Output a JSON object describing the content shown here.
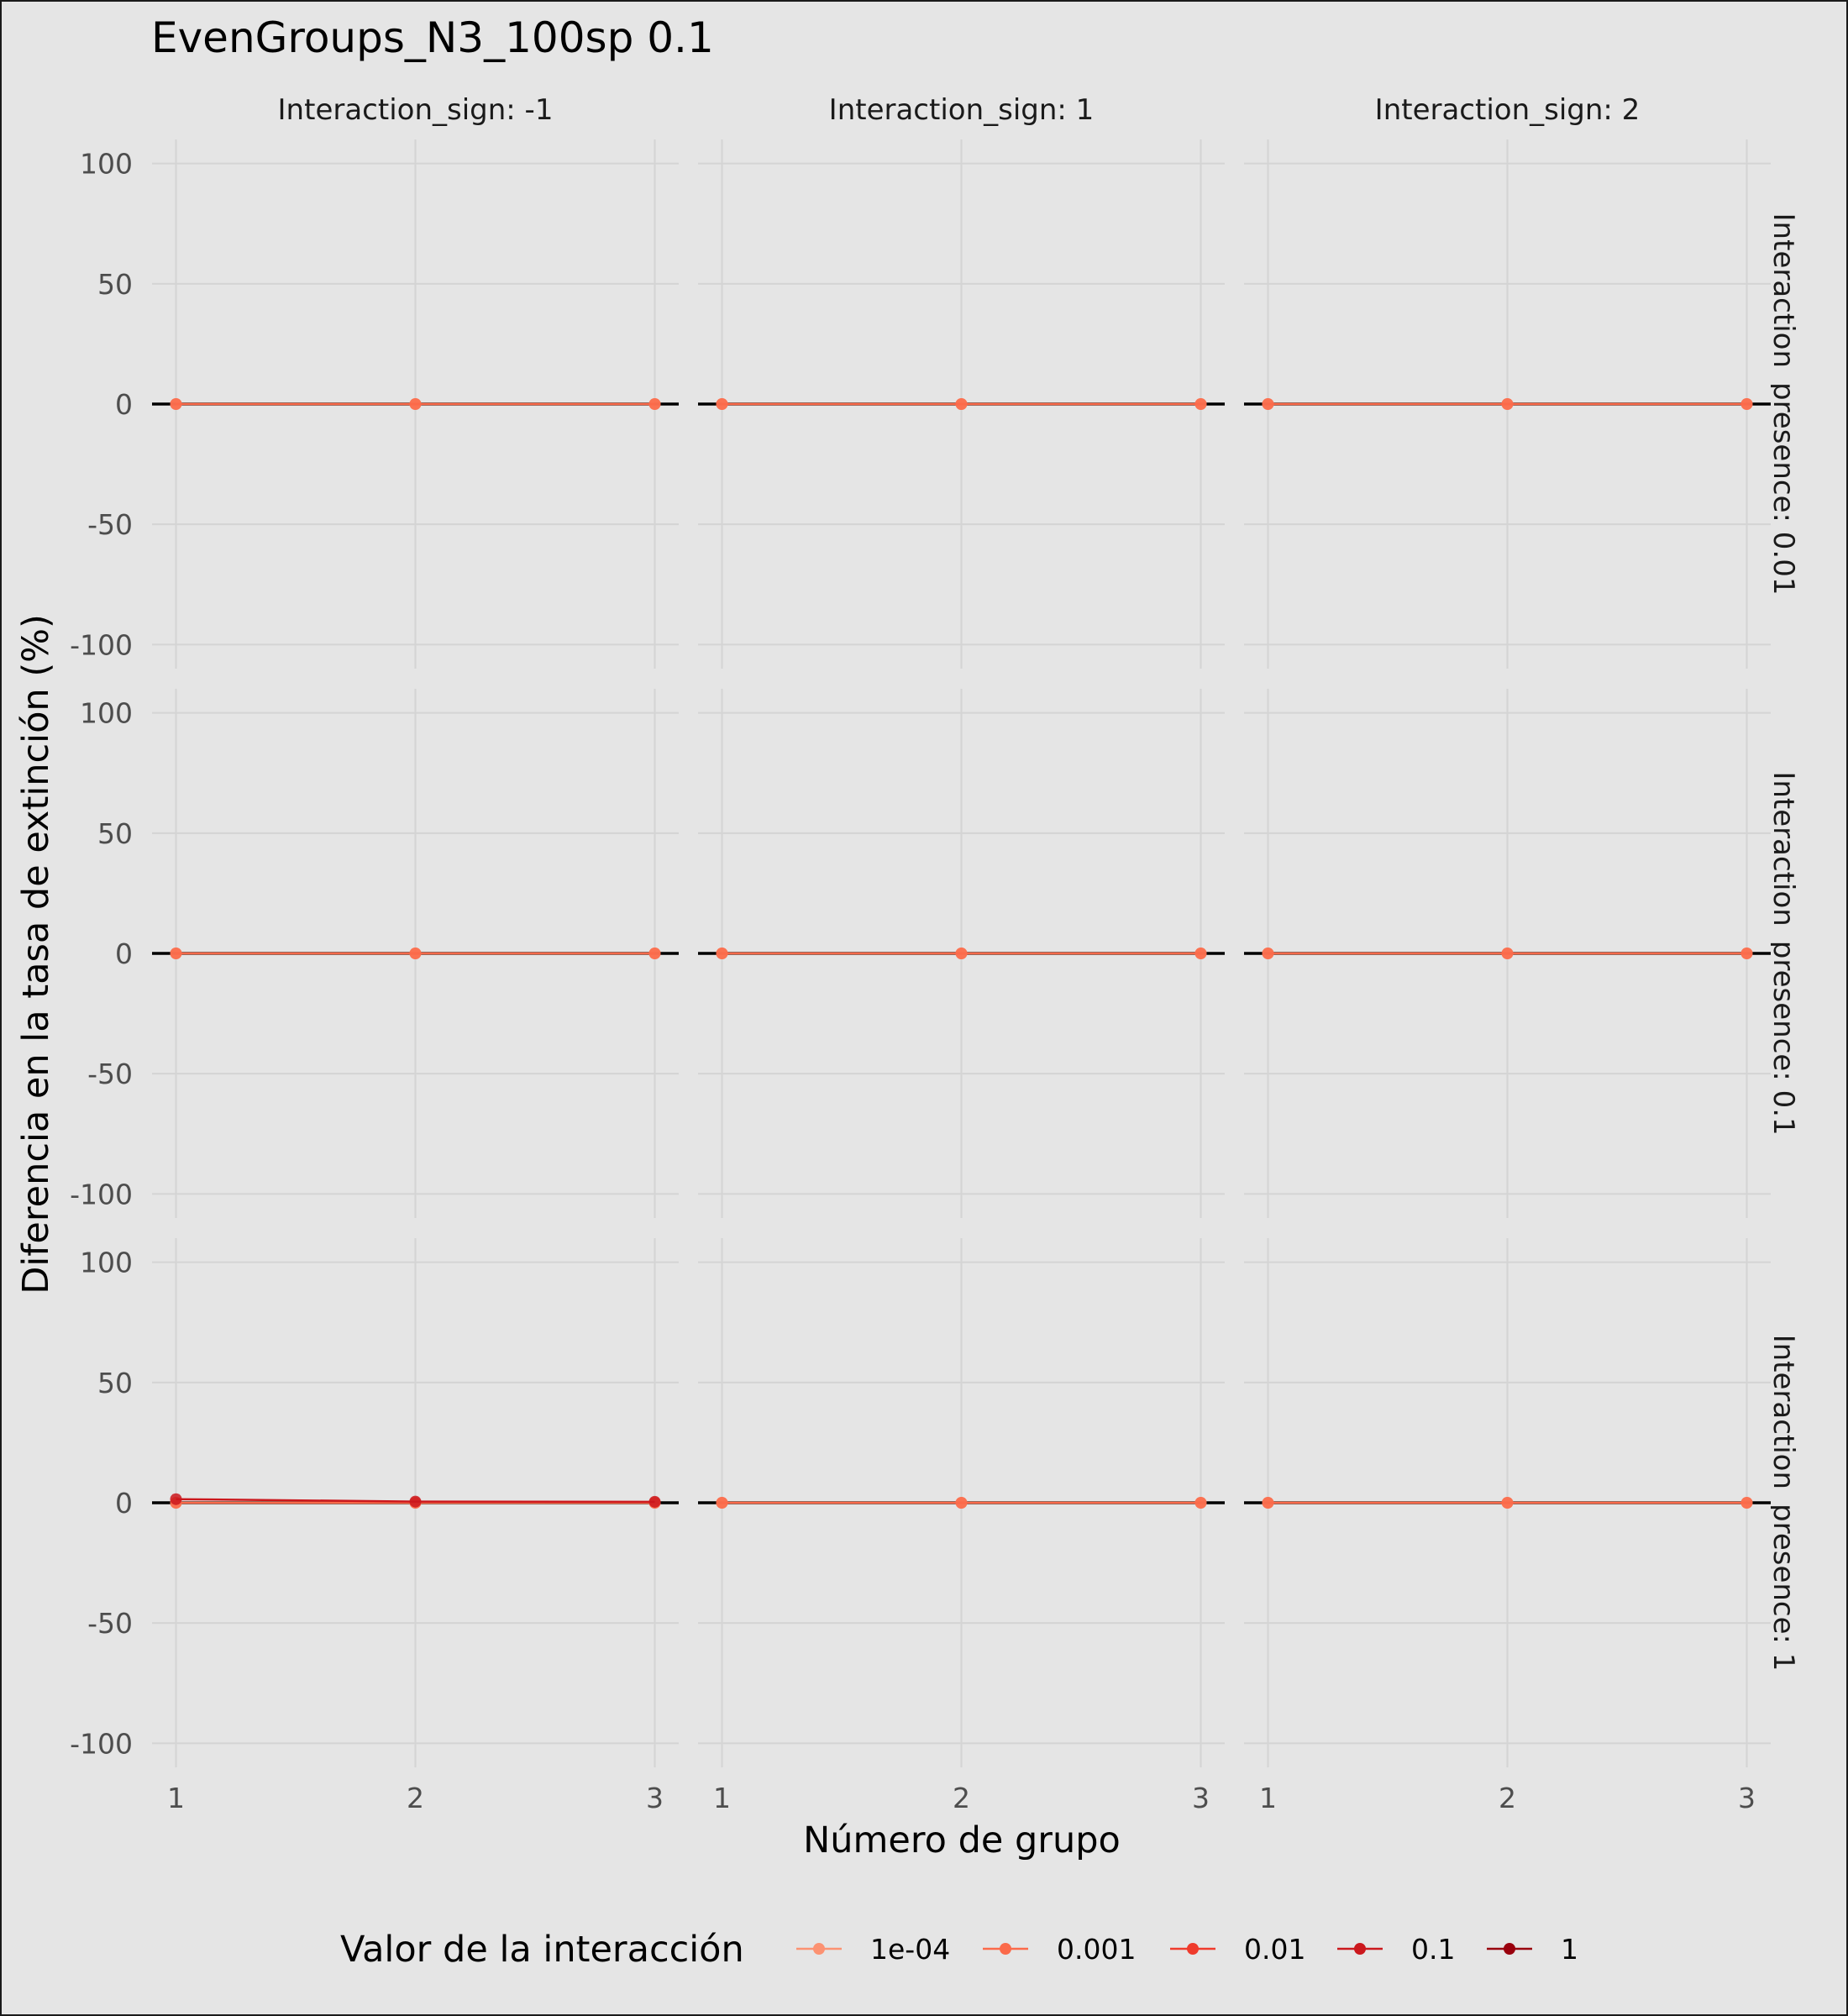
{
  "chart_data": {
    "type": "line",
    "title": "EvenGroups_N3_100sp 0.1",
    "xlabel": "Número de grupo",
    "ylabel": "Diferencia en la tasa de extinción (%)",
    "x": [
      1,
      2,
      3
    ],
    "x_tick_labels": [
      "1",
      "2",
      "3"
    ],
    "ylim": [
      -110,
      110
    ],
    "y_ticks": [
      100,
      50,
      0,
      -50,
      -100
    ],
    "y_tick_labels": [
      "100",
      "50",
      "0",
      "-50",
      "-100"
    ],
    "grid": true,
    "reference_line_y": 0,
    "column_facet_labels": [
      "Interaction_sign: -1",
      "Interaction_sign: 1",
      "Interaction_sign: 2"
    ],
    "row_facet_labels": [
      "Interaction_presence: 0.01",
      "Interaction_presence: 0.1",
      "Interaction_presence: 1"
    ],
    "legend": {
      "title": "Valor de la interacción",
      "position": "bottom",
      "entries": [
        {
          "label": "1e-04",
          "color": "#fc9272"
        },
        {
          "label": "0.001",
          "color": "#fb6a4a"
        },
        {
          "label": "0.01",
          "color": "#ef3b2c"
        },
        {
          "label": "0.1",
          "color": "#cb181d"
        },
        {
          "label": "1",
          "color": "#99000d"
        }
      ]
    },
    "panels": [
      {
        "row": 0,
        "col": 0,
        "series": [
          {
            "label": "1e-04",
            "values": [
              0,
              0,
              0
            ]
          },
          {
            "label": "0.001",
            "values": [
              0,
              0,
              0
            ]
          }
        ]
      },
      {
        "row": 0,
        "col": 1,
        "series": [
          {
            "label": "1e-04",
            "values": [
              0,
              0,
              0
            ]
          },
          {
            "label": "0.001",
            "values": [
              0,
              0,
              0
            ]
          }
        ]
      },
      {
        "row": 0,
        "col": 2,
        "series": [
          {
            "label": "1e-04",
            "values": [
              0,
              0,
              0
            ]
          },
          {
            "label": "0.001",
            "values": [
              0,
              0,
              0
            ]
          }
        ]
      },
      {
        "row": 1,
        "col": 0,
        "series": [
          {
            "label": "1e-04",
            "values": [
              0,
              0,
              0
            ]
          },
          {
            "label": "0.001",
            "values": [
              0,
              0,
              0
            ]
          }
        ]
      },
      {
        "row": 1,
        "col": 1,
        "series": [
          {
            "label": "1e-04",
            "values": [
              0,
              0,
              0
            ]
          },
          {
            "label": "0.001",
            "values": [
              0,
              0,
              0
            ]
          }
        ]
      },
      {
        "row": 1,
        "col": 2,
        "series": [
          {
            "label": "1e-04",
            "values": [
              0,
              0,
              0
            ]
          },
          {
            "label": "0.001",
            "values": [
              0,
              0,
              0
            ]
          }
        ]
      },
      {
        "row": 2,
        "col": 0,
        "series": [
          {
            "label": "1e-04",
            "values": [
              0,
              0,
              0
            ]
          },
          {
            "label": "0.001",
            "values": [
              0,
              0,
              0
            ]
          },
          {
            "label": "0.1",
            "values": [
              1.5,
              0.5,
              0.4
            ]
          }
        ]
      },
      {
        "row": 2,
        "col": 1,
        "series": [
          {
            "label": "1e-04",
            "values": [
              0,
              0,
              0
            ]
          },
          {
            "label": "0.001",
            "values": [
              0,
              0,
              0
            ]
          }
        ]
      },
      {
        "row": 2,
        "col": 2,
        "series": [
          {
            "label": "1e-04",
            "values": [
              0,
              0,
              0
            ]
          },
          {
            "label": "0.001",
            "values": [
              0,
              0,
              0
            ]
          }
        ]
      }
    ]
  }
}
